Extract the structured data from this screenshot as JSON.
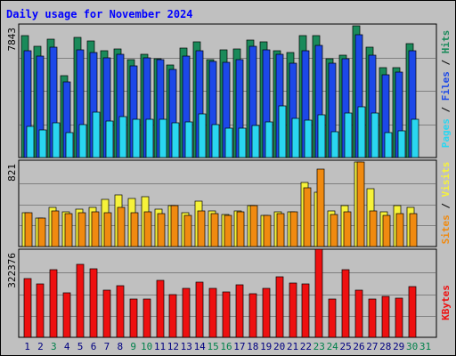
{
  "window_title": "Daily usage for November 2024",
  "colors": {
    "hits": "#1a8a5a",
    "files": "#1c48e8",
    "pages": "#2ad6f0",
    "visits": "#f6f23a",
    "sites": "#f08a10",
    "kbytes": "#ee1010",
    "day_blue": "#000080",
    "day_green": "#00804a"
  },
  "chart_data": [
    {
      "type": "bar",
      "title": "Daily usage for November 2024",
      "categories": [
        "1",
        "2",
        "3",
        "4",
        "5",
        "6",
        "7",
        "8",
        "9",
        "10",
        "11",
        "12",
        "13",
        "14",
        "15",
        "16",
        "17",
        "18",
        "19",
        "20",
        "21",
        "22",
        "23",
        "24",
        "25",
        "26",
        "27",
        "28",
        "29",
        "30",
        "31"
      ],
      "category_colors": [
        "blue",
        "blue",
        "green",
        "blue",
        "blue",
        "blue",
        "blue",
        "blue",
        "green",
        "green",
        "blue",
        "blue",
        "blue",
        "blue",
        "green",
        "green",
        "blue",
        "blue",
        "blue",
        "blue",
        "blue",
        "blue",
        "green",
        "green",
        "blue",
        "blue",
        "blue",
        "blue",
        "blue",
        "green",
        "green"
      ],
      "ymax_label": "7843",
      "ymax": 7843,
      "series": [
        {
          "name": "Hits",
          "values": [
            7150,
            6560,
            6940,
            4820,
            7070,
            6860,
            6250,
            6370,
            5750,
            6040,
            5800,
            5420,
            6420,
            6780,
            5770,
            6310,
            6400,
            6890,
            6810,
            6290,
            6190,
            7150,
            7150,
            5800,
            6010,
            7750,
            6480,
            5290,
            5290,
            6710,
            0
          ]
        },
        {
          "name": "Files",
          "values": [
            6280,
            5970,
            6460,
            4440,
            6340,
            6150,
            5830,
            6090,
            5410,
            5830,
            5770,
            5190,
            5960,
            6280,
            5670,
            5590,
            5750,
            6560,
            6320,
            6050,
            5540,
            6300,
            6590,
            5520,
            5790,
            7190,
            6020,
            4850,
            5000,
            6260,
            0
          ]
        },
        {
          "name": "Pages",
          "values": [
            1850,
            1600,
            2040,
            1440,
            1940,
            2680,
            2160,
            2390,
            2250,
            2270,
            2250,
            2040,
            2080,
            2560,
            1940,
            1730,
            1730,
            1890,
            2100,
            3050,
            2280,
            2180,
            2490,
            1530,
            2600,
            2990,
            2590,
            1440,
            1580,
            2270,
            0
          ]
        }
      ],
      "legend": "right"
    },
    {
      "type": "bar",
      "ymax_label": "821",
      "ymax": 821,
      "series": [
        {
          "name": "Visits",
          "values": [
            330,
            280,
            380,
            340,
            360,
            380,
            460,
            500,
            470,
            480,
            360,
            400,
            330,
            440,
            350,
            310,
            350,
            400,
            300,
            340,
            340,
            620,
            530,
            350,
            400,
            820,
            560,
            340,
            400,
            380,
            0
          ]
        },
        {
          "name": "Sites",
          "values": [
            330,
            280,
            350,
            320,
            330,
            340,
            330,
            380,
            330,
            340,
            320,
            400,
            300,
            350,
            320,
            300,
            340,
            400,
            300,
            320,
            340,
            570,
            750,
            310,
            340,
            820,
            350,
            300,
            320,
            320,
            0
          ]
        }
      ],
      "legend": "right"
    },
    {
      "type": "bar",
      "ymax_label": "322376",
      "ymax": 322376,
      "series": [
        {
          "name": "KBytes",
          "values": [
            218000,
            200000,
            254000,
            167000,
            272000,
            256000,
            176000,
            193000,
            142000,
            142000,
            213000,
            160000,
            183000,
            205000,
            183000,
            169000,
            196000,
            164000,
            183000,
            225000,
            203000,
            201000,
            328000,
            144000,
            253000,
            175000,
            142000,
            153000,
            147000,
            190000,
            0
          ]
        }
      ],
      "legend": "right"
    }
  ],
  "legend_top": [
    {
      "text": "Pages",
      "color_key": "pages"
    },
    {
      "text": "Files",
      "color_key": "files"
    },
    {
      "text": "Hits",
      "color_key": "hits"
    }
  ],
  "legend_mid": [
    {
      "text": "Sites",
      "color_key": "sites"
    },
    {
      "text": "Visits",
      "color_key": "visits"
    }
  ],
  "legend_bot": [
    {
      "text": "KBytes",
      "color_key": "kbytes"
    }
  ],
  "separator": "/"
}
